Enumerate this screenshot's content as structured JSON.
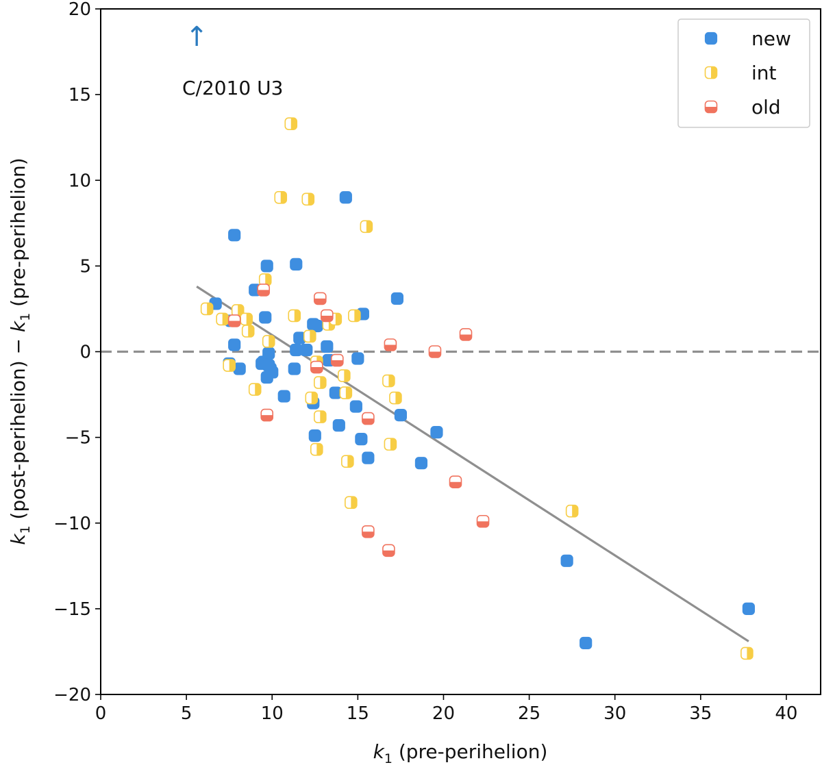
{
  "chart_data": {
    "type": "scatter",
    "title": "",
    "xlabel_main": "k",
    "xlabel_sub": "1",
    "xlabel_rest": " (pre-perihelion)",
    "ylabel_a": "k",
    "ylabel_a_sub": "1",
    "ylabel_a_rest": " (post-perihelion) − ",
    "ylabel_b": "k",
    "ylabel_b_sub": "1",
    "ylabel_b_rest": " (pre-perihelion)",
    "xlim": [
      0,
      42
    ],
    "ylim": [
      -20,
      20
    ],
    "xticks": [
      0,
      5,
      10,
      15,
      20,
      25,
      30,
      35,
      40
    ],
    "yticks": [
      -20,
      -15,
      -10,
      -5,
      0,
      5,
      10,
      15,
      20
    ],
    "ytick_labels": [
      "−20",
      "−15",
      "−10",
      "−5",
      "0",
      "5",
      "10",
      "15",
      "20"
    ],
    "legend_position": "top-right",
    "colors": {
      "new": "#3e8ee0",
      "int": "#f7cd45",
      "old": "#f0735e",
      "fit": "#8f8f8f",
      "zero": "#8f8f8f",
      "arrow": "#2b7bbf"
    },
    "reference_line": {
      "y": 0,
      "style": "dashed"
    },
    "fit_line": {
      "x": [
        5.6,
        37.8
      ],
      "y": [
        3.8,
        -16.9
      ]
    },
    "annotation": {
      "text": "C/2010 U3",
      "arrow": "↑",
      "x": 5.6,
      "y": 18.4,
      "text_x": 7.7,
      "text_y": 15.4
    },
    "series": [
      {
        "name": "new",
        "label": "new",
        "x": [
          7.8,
          6.7,
          7.6,
          7.8,
          7.5,
          8.1,
          9.0,
          9.6,
          9.7,
          9.5,
          9.8,
          9.4,
          9.9,
          9.7,
          10.0,
          9.8,
          9.9,
          10.7,
          11.3,
          11.4,
          11.6,
          12.0,
          12.4,
          12.6,
          13.2,
          12.4,
          13.3,
          12.5,
          13.7,
          13.9,
          14.3,
          14.9,
          15.0,
          15.2,
          15.3,
          15.6,
          17.3,
          17.5,
          18.7,
          19.6,
          27.2,
          28.3,
          37.8,
          11.4
        ],
        "y": [
          6.8,
          2.8,
          1.8,
          0.4,
          -0.7,
          -1.0,
          3.6,
          2.0,
          5.0,
          -0.6,
          -0.1,
          -0.7,
          -1.1,
          -1.5,
          -1.2,
          -0.8,
          -1.0,
          -2.6,
          -1.0,
          0.1,
          0.8,
          0.1,
          1.6,
          1.5,
          0.3,
          -3.0,
          -0.5,
          -4.9,
          -2.4,
          -4.3,
          9.0,
          -3.2,
          -0.4,
          -5.1,
          2.2,
          -6.2,
          3.1,
          -3.7,
          -6.5,
          -4.7,
          -12.2,
          -17.0,
          -15.0,
          5.1
        ]
      },
      {
        "name": "int",
        "label": "int",
        "x": [
          6.2,
          7.1,
          7.5,
          8.0,
          8.6,
          8.5,
          9.0,
          9.6,
          9.8,
          10.5,
          11.1,
          11.3,
          12.1,
          12.2,
          12.3,
          12.6,
          12.8,
          12.6,
          12.8,
          13.3,
          13.7,
          14.2,
          14.3,
          14.4,
          14.6,
          14.8,
          15.5,
          16.8,
          16.9,
          17.2,
          27.5,
          37.7
        ],
        "y": [
          2.5,
          1.9,
          -0.8,
          2.4,
          1.2,
          1.9,
          -2.2,
          4.2,
          0.6,
          9.0,
          13.3,
          2.1,
          8.9,
          0.9,
          -2.7,
          -5.7,
          -3.8,
          -0.6,
          -1.8,
          1.6,
          1.9,
          -1.4,
          -2.4,
          -6.4,
          -8.8,
          2.1,
          7.3,
          -1.7,
          -5.4,
          -2.7,
          -9.3,
          -17.6
        ]
      },
      {
        "name": "old",
        "label": "old",
        "x": [
          7.8,
          9.5,
          9.7,
          12.6,
          12.8,
          13.2,
          13.8,
          15.6,
          15.6,
          16.8,
          16.9,
          19.5,
          20.7,
          21.3,
          22.3
        ],
        "y": [
          1.8,
          3.6,
          -3.7,
          -0.9,
          3.1,
          2.1,
          -0.5,
          -3.9,
          -10.5,
          -11.6,
          0.4,
          0.0,
          -7.6,
          1.0,
          -9.9
        ]
      }
    ]
  }
}
